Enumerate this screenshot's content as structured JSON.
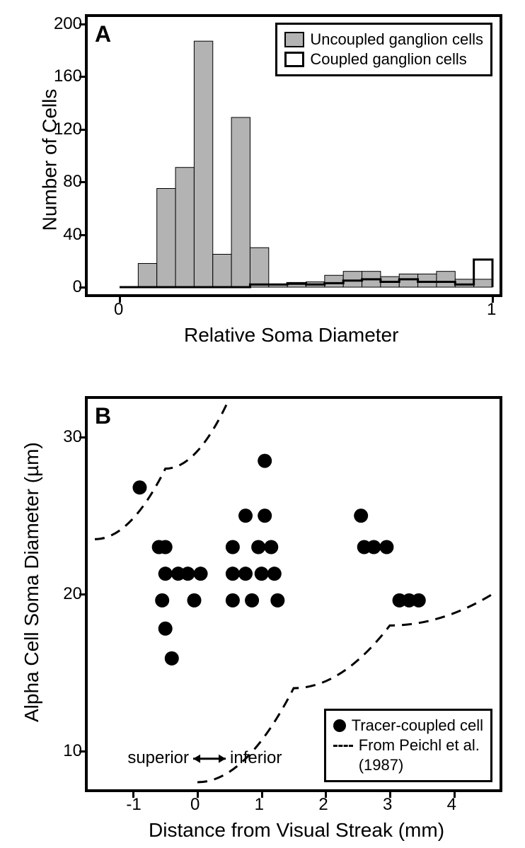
{
  "panelA": {
    "label": "A",
    "type": "histogram",
    "ylabel": "Number of Cells",
    "xlabel": "Relative Soma Diameter",
    "ylim": [
      0,
      200
    ],
    "yticks": [
      0,
      40,
      80,
      120,
      160,
      200
    ],
    "xlim": [
      0,
      1
    ],
    "xticks": [
      0,
      1
    ],
    "bin_width": 0.05,
    "series": {
      "uncoupled": {
        "label": "Uncoupled ganglion cells",
        "fill_color": "#b3b3b3",
        "stroke_color": "#000000",
        "stroke_width": 1,
        "bin_edges_left_to_right_20_bins_values": [
          0,
          18,
          75,
          91,
          187,
          25,
          129,
          30,
          2,
          2,
          4,
          9,
          12,
          12,
          8,
          10,
          10,
          12,
          6,
          6
        ]
      },
      "coupled": {
        "label": "Coupled ganglion cells",
        "fill_color": "none",
        "stroke_color": "#000000",
        "stroke_width": 3,
        "bin_edges_left_to_right_20_bins_values": [
          0,
          0,
          0,
          0,
          0,
          0,
          0,
          2,
          2,
          3,
          2,
          3,
          5,
          6,
          4,
          6,
          4,
          4,
          2,
          21
        ]
      }
    },
    "legend_position": "top-right",
    "background_color": "#ffffff",
    "border_color": "#000000",
    "border_width": 4,
    "title_fontsize": 32,
    "label_fontsize": 28,
    "tick_fontsize": 24
  },
  "panelB": {
    "label": "B",
    "type": "scatter",
    "ylabel": "Alpha Cell Soma Diameter (µm)",
    "xlabel": "Distance from Visual Streak (mm)",
    "ylim": [
      8,
      32
    ],
    "yticks": [
      10,
      20,
      30
    ],
    "xlim": [
      -1.6,
      4.6
    ],
    "xticks": [
      -1,
      0,
      1,
      2,
      3,
      4
    ],
    "superior_label": "superior",
    "inferior_label": "inferior",
    "marker_color": "#000000",
    "marker_radius": 10,
    "points": [
      {
        "x": -0.9,
        "y": 26.8
      },
      {
        "x": -0.6,
        "y": 23.0
      },
      {
        "x": -0.5,
        "y": 23.0
      },
      {
        "x": -0.5,
        "y": 21.3
      },
      {
        "x": -0.55,
        "y": 19.6
      },
      {
        "x": -0.5,
        "y": 17.8
      },
      {
        "x": -0.4,
        "y": 15.9
      },
      {
        "x": -0.3,
        "y": 21.3
      },
      {
        "x": -0.15,
        "y": 21.3
      },
      {
        "x": -0.05,
        "y": 19.6
      },
      {
        "x": 0.05,
        "y": 21.3
      },
      {
        "x": 0.55,
        "y": 23.0
      },
      {
        "x": 0.55,
        "y": 21.3
      },
      {
        "x": 0.55,
        "y": 19.6
      },
      {
        "x": 0.75,
        "y": 25.0
      },
      {
        "x": 0.75,
        "y": 21.3
      },
      {
        "x": 0.85,
        "y": 19.6
      },
      {
        "x": 0.95,
        "y": 23.0
      },
      {
        "x": 1.0,
        "y": 21.3
      },
      {
        "x": 1.05,
        "y": 28.5
      },
      {
        "x": 1.05,
        "y": 25.0
      },
      {
        "x": 1.15,
        "y": 23.0
      },
      {
        "x": 1.2,
        "y": 21.3
      },
      {
        "x": 1.25,
        "y": 19.6
      },
      {
        "x": 2.55,
        "y": 25.0
      },
      {
        "x": 2.6,
        "y": 23.0
      },
      {
        "x": 2.75,
        "y": 23.0
      },
      {
        "x": 2.95,
        "y": 23.0
      },
      {
        "x": 3.15,
        "y": 19.6
      },
      {
        "x": 3.3,
        "y": 19.6
      },
      {
        "x": 3.45,
        "y": 19.6
      }
    ],
    "dashed_lines": {
      "upper": [
        {
          "x": -1.6,
          "y": 23.5
        },
        {
          "x": -0.5,
          "y": 28.0
        },
        {
          "x": 0.5,
          "y": 32.5
        }
      ],
      "lower": [
        {
          "x": 0.0,
          "y": 8.0
        },
        {
          "x": 1.5,
          "y": 14.0
        },
        {
          "x": 3.0,
          "y": 18.0
        },
        {
          "x": 4.6,
          "y": 20.0
        }
      ]
    },
    "dash_color": "#000000",
    "dash_width": 3,
    "legend": {
      "tracer_label": "Tracer-coupled cell",
      "dash_label_1": "From Peichl et al.",
      "dash_label_2": "(1987)"
    },
    "legend_position": "bottom-right",
    "background_color": "#ffffff",
    "border_color": "#000000",
    "border_width": 4,
    "title_fontsize": 32,
    "label_fontsize": 28,
    "tick_fontsize": 24
  }
}
